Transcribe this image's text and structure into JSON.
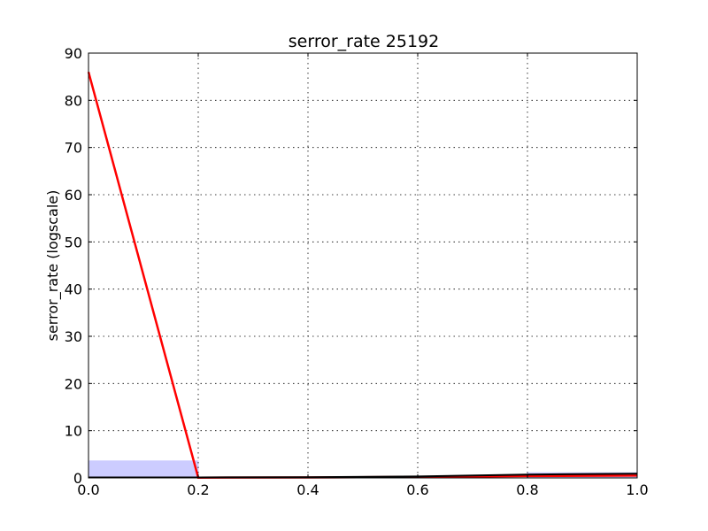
{
  "chart_data": {
    "type": "line",
    "title": "serror_rate 25192",
    "xlabel": "",
    "ylabel": "serror_rate (logscale)",
    "xlim": [
      0,
      1
    ],
    "ylim": [
      0,
      90
    ],
    "x_ticks": [
      "0.0",
      "0.2",
      "0.4",
      "0.6",
      "0.8",
      "1.0"
    ],
    "y_ticks": [
      "0",
      "10",
      "20",
      "30",
      "40",
      "50",
      "60",
      "70",
      "80",
      "90"
    ],
    "grid": true,
    "series": [
      {
        "kind": "line",
        "color": "#ff0000",
        "x": [
          0.0,
          0.2,
          0.4,
          0.6,
          0.8,
          1.0
        ],
        "y": [
          86,
          0.05,
          0.1,
          0.2,
          0.4,
          0.5
        ]
      },
      {
        "kind": "line",
        "color": "#000000",
        "x": [
          0.0,
          0.2,
          0.4,
          0.6,
          0.8,
          1.0
        ],
        "y": [
          0.1,
          0.1,
          0.15,
          0.3,
          0.7,
          0.9
        ]
      },
      {
        "kind": "bar",
        "color": "#ccccff",
        "bins": [
          {
            "x0": 0.0,
            "x1": 0.2,
            "value": 3.6
          },
          {
            "x0": 0.8,
            "x1": 1.0,
            "value": 1.1
          }
        ]
      }
    ]
  }
}
